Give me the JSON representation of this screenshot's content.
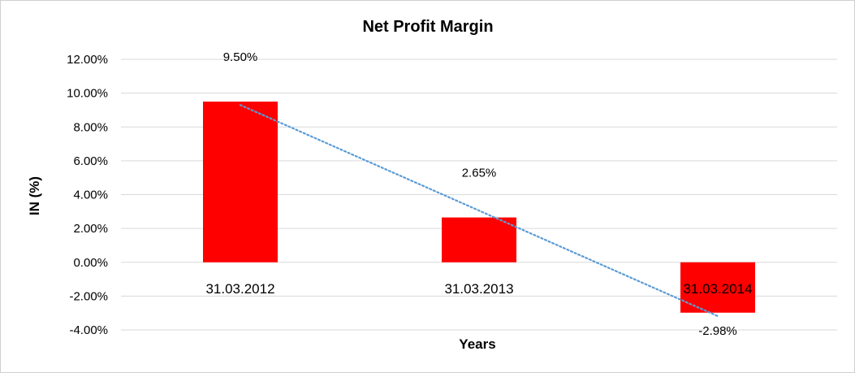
{
  "chart_data": {
    "type": "bar",
    "title": "Net Profit Margin",
    "xlabel": "Years",
    "ylabel": "IN (%)",
    "categories": [
      "31.03.2012",
      "31.03.2013",
      "31.03.2014"
    ],
    "values": [
      9.5,
      2.65,
      -2.98
    ],
    "data_labels": [
      "9.50%",
      "2.65%",
      "-2.98%"
    ],
    "ylim": [
      -4,
      12
    ],
    "yticks": [
      12,
      10,
      8,
      6,
      4,
      2,
      0,
      -2,
      -4
    ],
    "ytick_labels": [
      "12.00%",
      "10.00%",
      "8.00%",
      "6.00%",
      "4.00%",
      "2.00%",
      "0.00%",
      "-2.00%",
      "-4.00%"
    ],
    "grid": true,
    "legend": "none",
    "trendline": {
      "type": "linear",
      "style": "dotted"
    },
    "colors": {
      "bar": "#ff0000",
      "trendline": "#5b9bd5",
      "grid": "#d9d9d9"
    }
  }
}
